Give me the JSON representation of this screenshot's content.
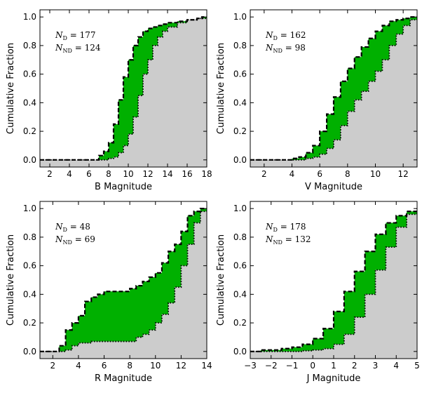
{
  "colors": {
    "band": "#00b000",
    "below": "#cccccc",
    "line": "#000000"
  },
  "chart_data": [
    {
      "type": "area",
      "xlabel": "B Magnitude",
      "ylabel": "Cumulative Fraction",
      "xlim": [
        1,
        18
      ],
      "ylim": [
        -0.05,
        1.05
      ],
      "xticks": [
        "2",
        "4",
        "6",
        "8",
        "10",
        "12",
        "14",
        "16",
        "18"
      ],
      "yticks": [
        "0.0",
        "0.2",
        "0.4",
        "0.6",
        "0.8",
        "1.0"
      ],
      "annotation": {
        "n_d_label": "N",
        "n_d_sub": "D",
        "n_d": "177",
        "n_nd_label": "N",
        "n_nd_sub": "ND",
        "n_nd": "124"
      },
      "upper": {
        "x": [
          1,
          6.3,
          7,
          7.5,
          8,
          8.5,
          9,
          9.5,
          10,
          10.5,
          11,
          11.5,
          12,
          12.5,
          13,
          13.5,
          14,
          15,
          16,
          17,
          17.5,
          18
        ],
        "y": [
          0,
          0,
          0.03,
          0.06,
          0.12,
          0.25,
          0.42,
          0.58,
          0.7,
          0.8,
          0.86,
          0.9,
          0.92,
          0.93,
          0.94,
          0.95,
          0.96,
          0.97,
          0.98,
          0.99,
          1.0,
          1.0
        ]
      },
      "lower": {
        "x": [
          1,
          6.3,
          7,
          8,
          8.5,
          9,
          9.5,
          10,
          10.5,
          11,
          11.5,
          12,
          12.5,
          13,
          13.5,
          14,
          15,
          16,
          17,
          18
        ],
        "y": [
          0,
          0,
          0,
          0.01,
          0.02,
          0.05,
          0.1,
          0.18,
          0.3,
          0.45,
          0.6,
          0.7,
          0.8,
          0.86,
          0.9,
          0.93,
          0.96,
          0.98,
          0.99,
          1.0
        ]
      }
    },
    {
      "type": "area",
      "xlabel": "V Magnitude",
      "ylabel": "Cumulative Fraction",
      "xlim": [
        1,
        13
      ],
      "ylim": [
        -0.05,
        1.05
      ],
      "xticks": [
        "2",
        "4",
        "6",
        "8",
        "10",
        "12"
      ],
      "yticks": [
        "0.0",
        "0.2",
        "0.4",
        "0.6",
        "0.8",
        "1.0"
      ],
      "annotation": {
        "n_d_label": "N",
        "n_d_sub": "D",
        "n_d": "162",
        "n_nd_label": "N",
        "n_nd_sub": "ND",
        "n_nd": "98"
      },
      "upper": {
        "x": [
          1,
          3.5,
          4,
          4.5,
          5,
          5.5,
          6,
          6.5,
          7,
          7.5,
          8,
          8.5,
          9,
          9.5,
          10,
          10.5,
          11,
          11.5,
          12,
          12.5,
          13
        ],
        "y": [
          0,
          0,
          0.01,
          0.02,
          0.05,
          0.1,
          0.2,
          0.32,
          0.44,
          0.55,
          0.64,
          0.72,
          0.79,
          0.85,
          0.9,
          0.94,
          0.97,
          0.98,
          0.99,
          1.0,
          1.0
        ]
      },
      "lower": {
        "x": [
          1,
          3.5,
          4,
          5,
          5.5,
          6,
          6.5,
          7,
          7.5,
          8,
          8.5,
          9,
          9.5,
          10,
          10.5,
          11,
          11.5,
          12,
          12.5,
          13
        ],
        "y": [
          0,
          0,
          0,
          0.01,
          0.02,
          0.04,
          0.08,
          0.14,
          0.24,
          0.34,
          0.42,
          0.48,
          0.55,
          0.62,
          0.7,
          0.8,
          0.88,
          0.94,
          0.98,
          1.0
        ]
      }
    },
    {
      "type": "area",
      "xlabel": "R Magnitude",
      "ylabel": "Cumulative Fraction",
      "xlim": [
        1,
        14
      ],
      "ylim": [
        -0.05,
        1.05
      ],
      "xticks": [
        "2",
        "4",
        "6",
        "8",
        "10",
        "12",
        "14"
      ],
      "yticks": [
        "0.0",
        "0.2",
        "0.4",
        "0.6",
        "0.8",
        "1.0"
      ],
      "annotation": {
        "n_d_label": "N",
        "n_d_sub": "D",
        "n_d": "48",
        "n_nd_label": "N",
        "n_nd_sub": "ND",
        "n_nd": "69"
      },
      "upper": {
        "x": [
          1,
          2,
          2.5,
          3,
          3.5,
          4,
          4.5,
          5,
          5.5,
          6,
          7,
          8,
          8.5,
          9,
          9.5,
          10,
          10.5,
          11,
          11.5,
          12,
          12.5,
          13,
          13.5,
          14
        ],
        "y": [
          0,
          0,
          0.04,
          0.15,
          0.2,
          0.25,
          0.35,
          0.38,
          0.4,
          0.42,
          0.42,
          0.44,
          0.46,
          0.49,
          0.52,
          0.55,
          0.62,
          0.7,
          0.75,
          0.84,
          0.95,
          0.98,
          1.0,
          1.0
        ]
      },
      "lower": {
        "x": [
          1,
          2,
          3,
          3.5,
          4,
          5,
          6,
          7,
          8,
          8.5,
          9,
          9.5,
          10,
          10.5,
          11,
          11.5,
          12,
          12.5,
          13,
          13.5,
          14
        ],
        "y": [
          0,
          0,
          0.01,
          0.04,
          0.06,
          0.07,
          0.07,
          0.07,
          0.07,
          0.1,
          0.12,
          0.15,
          0.2,
          0.26,
          0.34,
          0.45,
          0.6,
          0.75,
          0.9,
          0.98,
          1.0
        ]
      }
    },
    {
      "type": "area",
      "xlabel": "J Magnitude",
      "ylabel": "Cumulative Fraction",
      "xlim": [
        -3,
        5
      ],
      "ylim": [
        -0.05,
        1.05
      ],
      "xticks": [
        "−3",
        "−2",
        "−1",
        "0",
        "1",
        "2",
        "3",
        "4",
        "5"
      ],
      "yticks": [
        "0.0",
        "0.2",
        "0.4",
        "0.6",
        "0.8",
        "1.0"
      ],
      "annotation": {
        "n_d_label": "N",
        "n_d_sub": "D",
        "n_d": "178",
        "n_nd_label": "N",
        "n_nd_sub": "ND",
        "n_nd": "132"
      },
      "upper": {
        "x": [
          -3,
          -2.5,
          -2,
          -1.5,
          -1,
          -0.5,
          0,
          0.5,
          1,
          1.5,
          2,
          2.5,
          3,
          3.5,
          4,
          4.5,
          5
        ],
        "y": [
          0,
          0.01,
          0.01,
          0.02,
          0.03,
          0.05,
          0.09,
          0.16,
          0.28,
          0.42,
          0.56,
          0.7,
          0.82,
          0.9,
          0.95,
          0.98,
          1.0
        ]
      },
      "lower": {
        "x": [
          -3,
          -1,
          -0.5,
          0,
          0.5,
          1,
          1.5,
          2,
          2.5,
          3,
          3.5,
          4,
          4.5,
          5
        ],
        "y": [
          0,
          0,
          0.005,
          0.01,
          0.02,
          0.05,
          0.12,
          0.24,
          0.4,
          0.57,
          0.73,
          0.87,
          0.96,
          1.0
        ]
      }
    }
  ]
}
